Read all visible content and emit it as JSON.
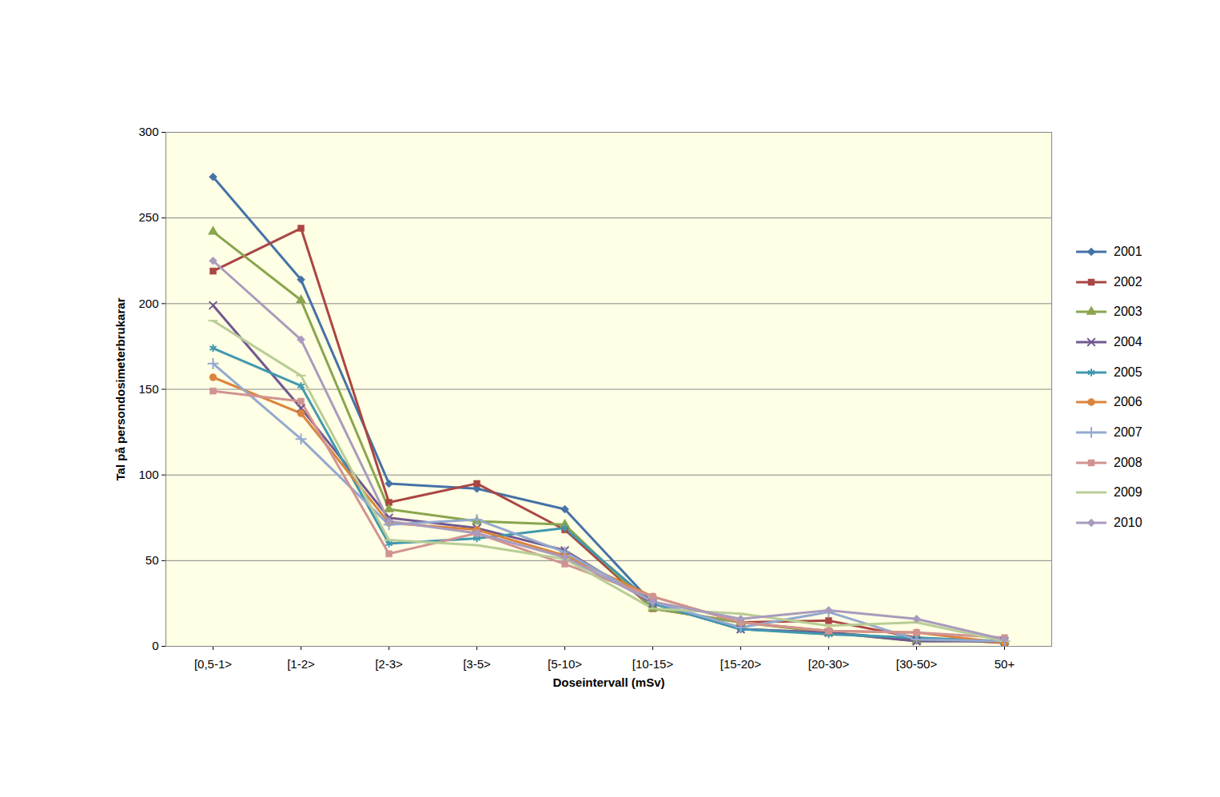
{
  "chart_data": {
    "type": "line",
    "x_label": "Doseintervall (mSv)",
    "y_label": "Tal på persondosimeterbrukarar",
    "categories": [
      "[0,5-1>",
      "[1-2>",
      "[2-3>",
      "[3-5>",
      "[5-10>",
      "[10-15>",
      "[15-20>",
      "[20-30>",
      "[30-50>",
      "50+"
    ],
    "series": [
      {
        "name": "2001",
        "color": "#4572A7",
        "marker": "diamond",
        "values": [
          274,
          214,
          95,
          92,
          80,
          25,
          10,
          8,
          4,
          3
        ]
      },
      {
        "name": "2002",
        "color": "#AA4643",
        "marker": "square",
        "values": [
          219,
          244,
          84,
          95,
          68,
          22,
          14,
          15,
          5,
          2
        ]
      },
      {
        "name": "2003",
        "color": "#89A54E",
        "marker": "triangle",
        "values": [
          242,
          202,
          80,
          73,
          71,
          22,
          14,
          8,
          3,
          3
        ]
      },
      {
        "name": "2004",
        "color": "#71588F",
        "marker": "x",
        "values": [
          199,
          139,
          75,
          69,
          56,
          25,
          10,
          8,
          3,
          3
        ]
      },
      {
        "name": "2005",
        "color": "#4198AF",
        "marker": "asterisk",
        "values": [
          174,
          152,
          60,
          63,
          69,
          25,
          10,
          7,
          5,
          3
        ]
      },
      {
        "name": "2006",
        "color": "#DB843D",
        "marker": "circle",
        "values": [
          157,
          136,
          72,
          68,
          53,
          29,
          14,
          9,
          8,
          2
        ]
      },
      {
        "name": "2007",
        "color": "#93A9CF",
        "marker": "plus",
        "values": [
          165,
          121,
          71,
          74,
          55,
          26,
          11,
          20,
          4,
          3
        ]
      },
      {
        "name": "2008",
        "color": "#D19392",
        "marker": "square",
        "values": [
          149,
          143,
          54,
          66,
          48,
          29,
          14,
          9,
          8,
          5
        ]
      },
      {
        "name": "2009",
        "color": "#B9CD96",
        "marker": "dash",
        "values": [
          190,
          158,
          62,
          59,
          51,
          22,
          19,
          12,
          14,
          3
        ]
      },
      {
        "name": "2010",
        "color": "#A99BBD",
        "marker": "diamond",
        "values": [
          225,
          179,
          73,
          66,
          52,
          26,
          16,
          21,
          16,
          4
        ]
      }
    ],
    "ylim": [
      0,
      300
    ],
    "yticks": [
      0,
      50,
      100,
      150,
      200,
      250,
      300
    ],
    "grid": true,
    "legend": "right"
  }
}
